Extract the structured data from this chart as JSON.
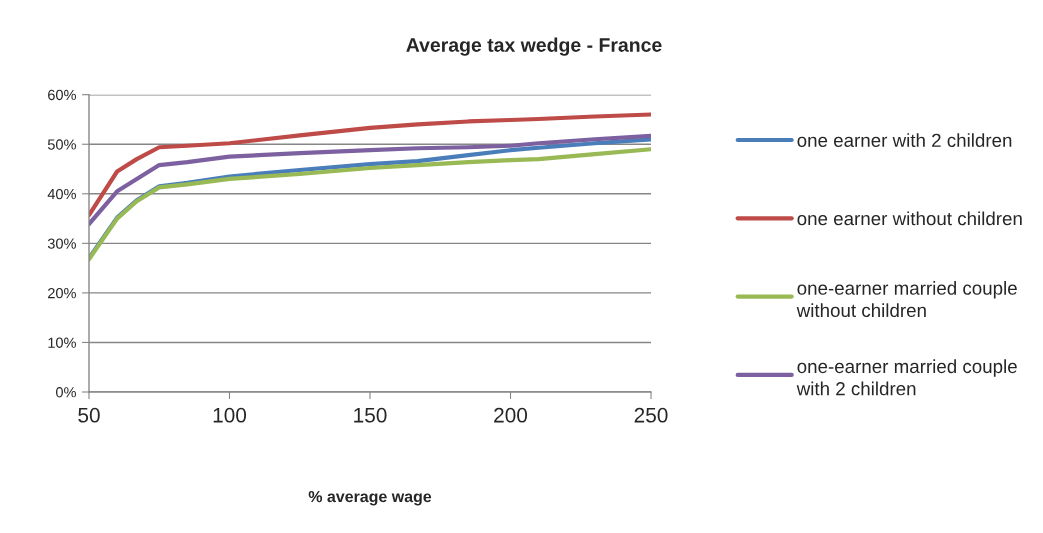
{
  "chart_data": {
    "type": "line",
    "title": "Average tax wedge - France",
    "xlabel": "% average wage",
    "x": [
      50,
      60,
      67,
      75,
      85,
      100,
      125,
      150,
      167,
      185,
      200,
      210,
      230,
      250
    ],
    "series": [
      {
        "name": "one earner with 2 children",
        "color": "#4a7ebb",
        "values": [
          27.0,
          35.2,
          38.7,
          41.5,
          42.2,
          43.5,
          44.8,
          46.0,
          46.6,
          47.8,
          48.8,
          49.3,
          50.2,
          51.0
        ]
      },
      {
        "name": "one earner without children",
        "color": "#be4b48",
        "values": [
          35.7,
          44.5,
          47.0,
          49.4,
          49.7,
          50.2,
          51.8,
          53.3,
          54.0,
          54.6,
          54.9,
          55.1,
          55.6,
          56.0
        ]
      },
      {
        "name": "one-earner married couple without children",
        "color": "#98b954",
        "values": [
          26.8,
          35.0,
          38.5,
          41.3,
          41.9,
          43.0,
          44.0,
          45.2,
          45.8,
          46.4,
          46.8,
          47.0,
          48.0,
          49.0
        ]
      },
      {
        "name": "one-earner married couple with 2 children",
        "color": "#7d60a0",
        "values": [
          33.9,
          40.5,
          43.0,
          45.8,
          46.4,
          47.5,
          48.2,
          48.8,
          49.2,
          49.4,
          49.7,
          50.2,
          51.0,
          51.7
        ]
      }
    ],
    "xlim": [
      50,
      250
    ],
    "xticks": [
      50,
      100,
      150,
      200,
      250
    ],
    "ylim": [
      0,
      60
    ],
    "yticks": [
      {
        "value": 0,
        "label": "0%"
      },
      {
        "value": 10,
        "label": "10%"
      },
      {
        "value": 20,
        "label": "20%"
      },
      {
        "value": 30,
        "label": "30%"
      },
      {
        "value": 40,
        "label": "40%"
      },
      {
        "value": 50,
        "label": "50%"
      },
      {
        "value": 60,
        "label": "60%"
      }
    ],
    "grid": "y",
    "legend": "right",
    "line_style": "solid"
  }
}
